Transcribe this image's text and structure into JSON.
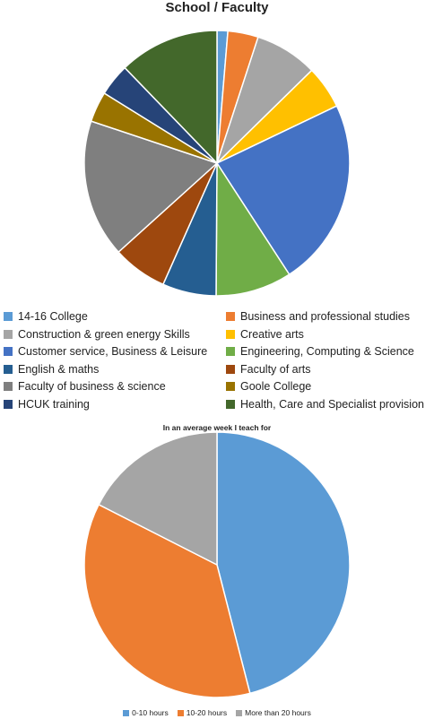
{
  "chart_data": [
    {
      "type": "pie",
      "title": "School / Faculty",
      "legend_position": "bottom",
      "slices": [
        {
          "label": "14-16 College",
          "value": 1.2,
          "color": "#5b9bd5"
        },
        {
          "label": "Business and professional studies",
          "value": 3.4,
          "color": "#ed7d31"
        },
        {
          "label": "Construction & green energy Skills",
          "value": 7.0,
          "color": "#a5a5a5"
        },
        {
          "label": "Creative arts",
          "value": 4.8,
          "color": "#ffc000"
        },
        {
          "label": "Customer service, Business & Leisure",
          "value": 21.0,
          "color": "#4472c4"
        },
        {
          "label": "Engineering, Computing & Science",
          "value": 8.5,
          "color": "#70ad47"
        },
        {
          "label": "English & maths",
          "value": 6.0,
          "color": "#255e91"
        },
        {
          "label": "Faculty of arts",
          "value": 6.1,
          "color": "#9e480e"
        },
        {
          "label": "Faculty of business & science",
          "value": 15.4,
          "color": "#7f7f7f"
        },
        {
          "label": "Goole College",
          "value": 3.4,
          "color": "#997300"
        },
        {
          "label": "HCUK training",
          "value": 3.6,
          "color": "#264478"
        },
        {
          "label": "Health, Care and Specialist provision",
          "value": 11.2,
          "color": "#43682b"
        }
      ]
    },
    {
      "type": "pie",
      "title": "In an average week I teach for",
      "legend_position": "bottom",
      "slices": [
        {
          "label": "0-10 hours",
          "value": 46.0,
          "color": "#5b9bd5"
        },
        {
          "label": "10-20 hours",
          "value": 36.5,
          "color": "#ed7d31"
        },
        {
          "label": "More than 20 hours",
          "value": 17.5,
          "color": "#a5a5a5"
        }
      ]
    }
  ]
}
